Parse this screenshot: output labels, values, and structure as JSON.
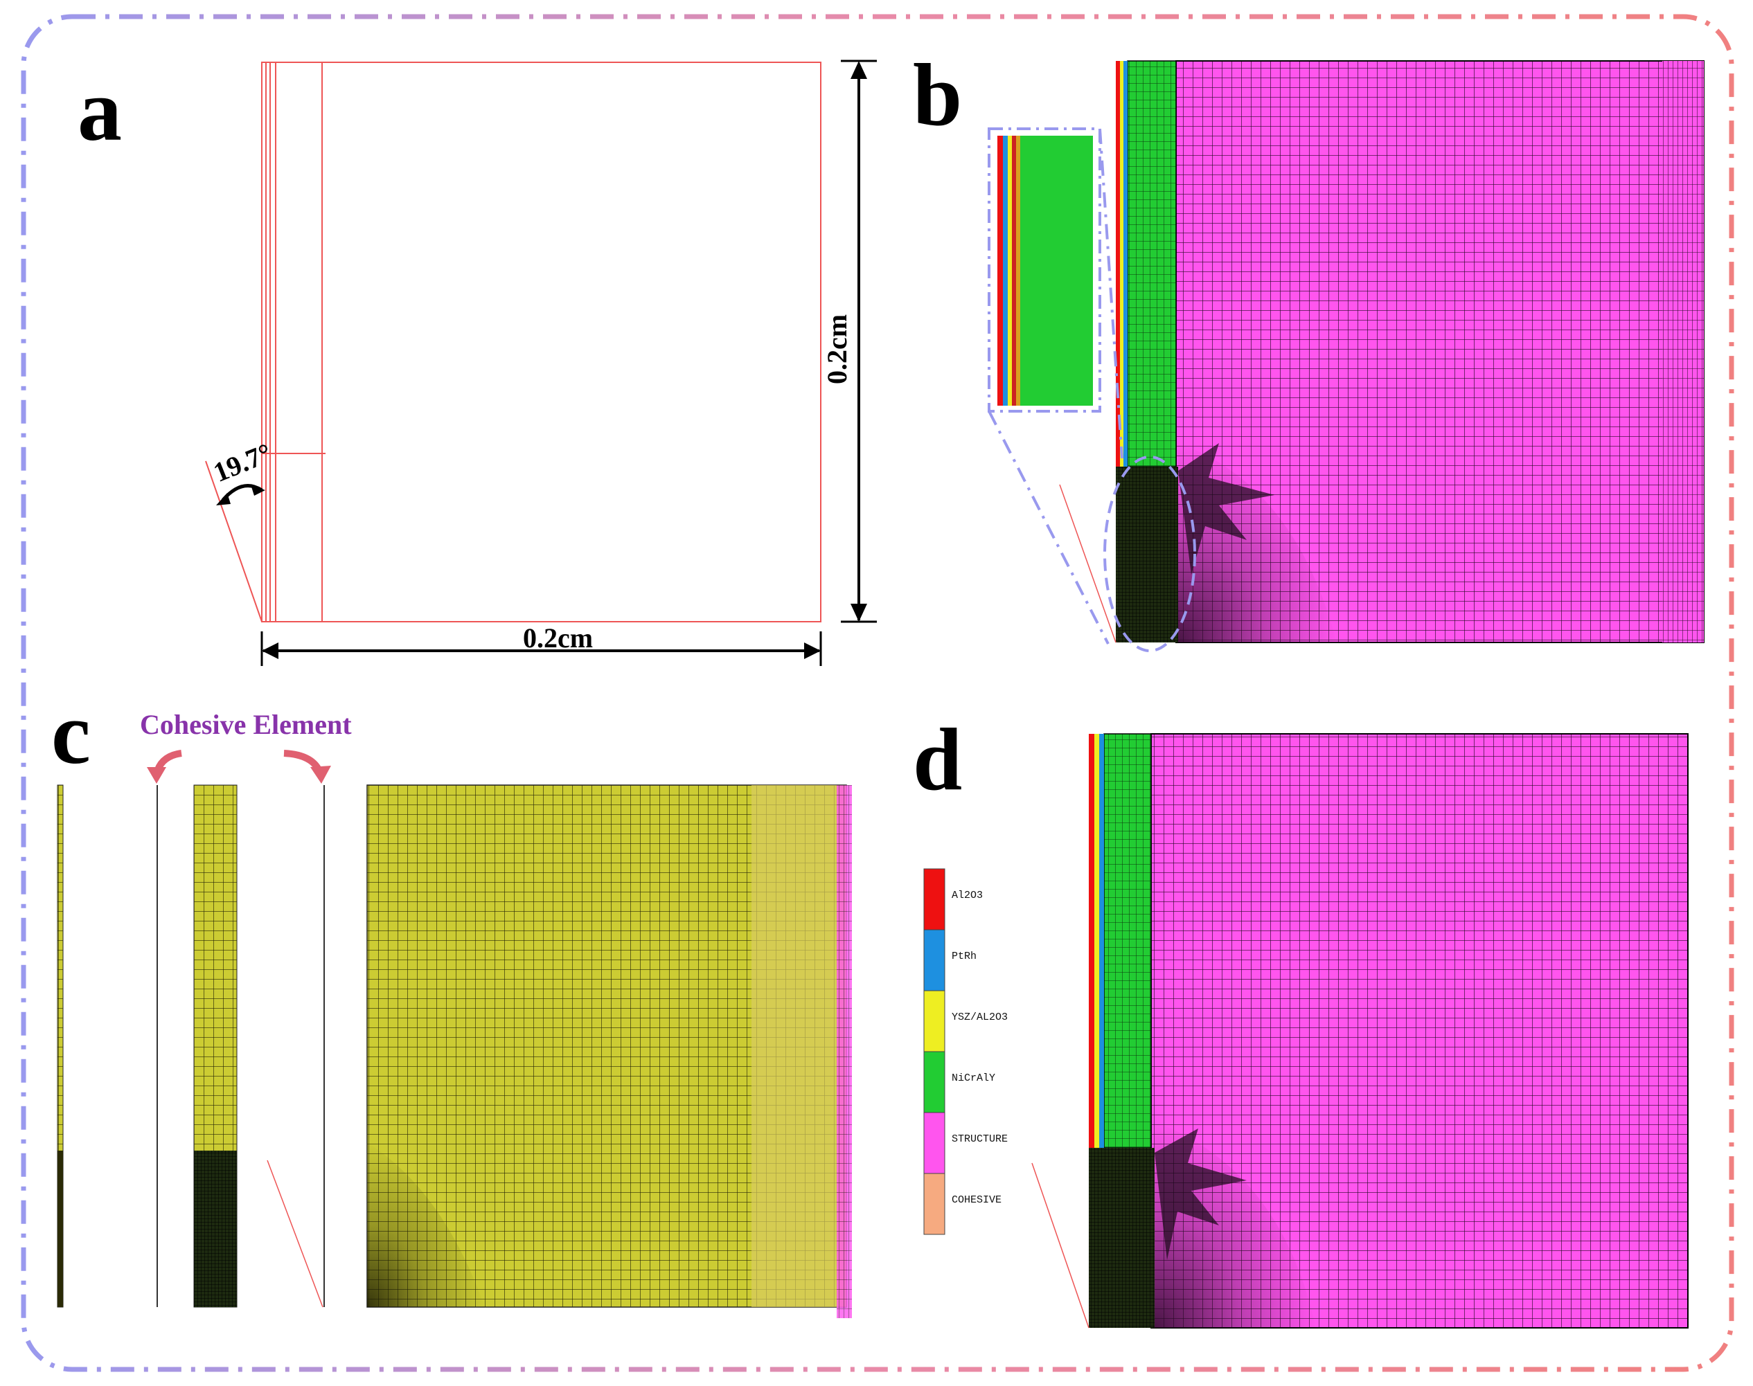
{
  "panels": {
    "a": {
      "letter": "a",
      "angle_label": "19.7°",
      "width_label": "0.2cm",
      "height_label": "0.2cm"
    },
    "b": {
      "letter": "b"
    },
    "c": {
      "letter": "c",
      "cohesive_label": "Cohesive Element"
    },
    "d": {
      "letter": "d",
      "legend": [
        {
          "label": "Al2O3",
          "color": "#ee1111"
        },
        {
          "label": "PtRh",
          "color": "#1e90e0"
        },
        {
          "label": "YSZ/AL2O3",
          "color": "#eeee22"
        },
        {
          "label": "NiCrAlY",
          "color": "#22cc33"
        },
        {
          "label": "STRUCTURE",
          "color": "#ff55ee"
        },
        {
          "label": "COHESIVE",
          "color": "#f6aa80"
        }
      ]
    }
  },
  "colors": {
    "frame_blue": "#9999ee",
    "frame_pink": "#f08080",
    "structure": "#ff55ee",
    "nicraly": "#22cc33",
    "ysz": "#eeee22",
    "al2o3": "#ee1111",
    "ptrh": "#1e90e0",
    "olive": "#cccc33",
    "geometry_line": "#ee5555",
    "cohesive_title": "#8833aa",
    "arrow": "#e06070"
  }
}
